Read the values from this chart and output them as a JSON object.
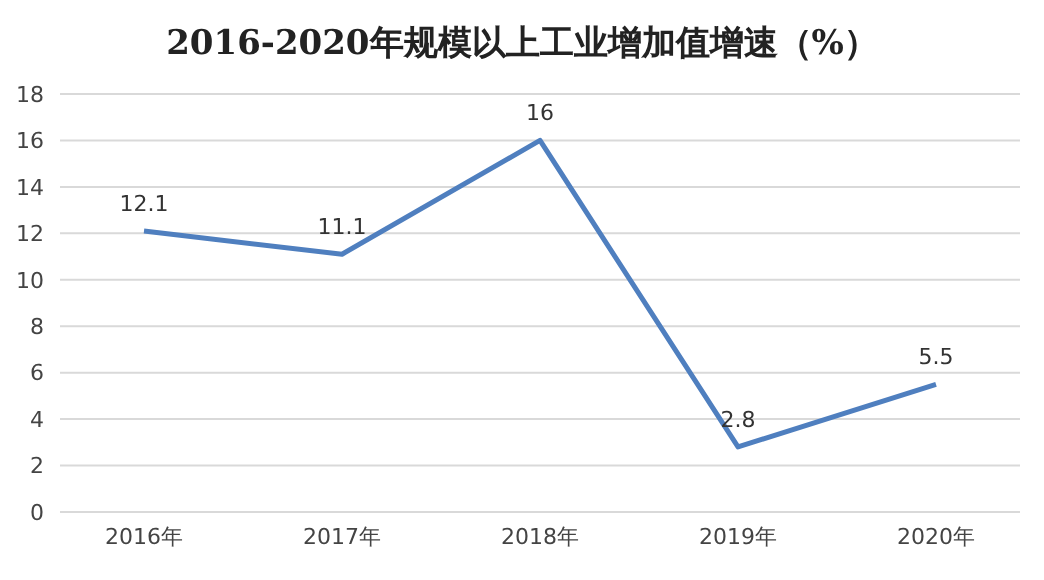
{
  "chart_data": {
    "type": "line",
    "title": "2016-2020年规模以上工业增加值增速（%）",
    "categories": [
      "2016年",
      "2017年",
      "2018年",
      "2019年",
      "2020年"
    ],
    "series": [
      {
        "color": "#4f7fbf",
        "values": [
          12.1,
          11.1,
          16,
          2.8,
          5.5
        ]
      }
    ],
    "ylim": [
      0,
      18
    ],
    "yticks": [
      0,
      2,
      4,
      6,
      8,
      10,
      12,
      14,
      16,
      18
    ],
    "grid": "y",
    "data_labels": true,
    "marker": "none",
    "line_style": "solid",
    "legend": false
  }
}
